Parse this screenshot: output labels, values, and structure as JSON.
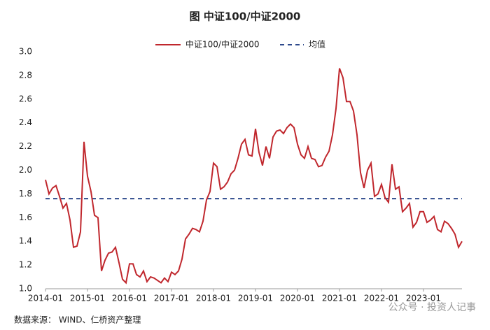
{
  "chart_data": {
    "type": "line",
    "title": "图  中证100/中证2000",
    "source": "数据来源：  WIND、仁桥资产整理",
    "watermark": "公众号 · 投资人记事",
    "categories": [
      "2014-01",
      null,
      null,
      null,
      null,
      null,
      null,
      null,
      null,
      null,
      null,
      null,
      "2015-01",
      null,
      null,
      null,
      null,
      null,
      null,
      null,
      null,
      null,
      null,
      null,
      "2016-01",
      null,
      null,
      null,
      null,
      null,
      null,
      null,
      null,
      null,
      null,
      null,
      "2017-01",
      null,
      null,
      null,
      null,
      null,
      null,
      null,
      null,
      null,
      null,
      null,
      "2018-01",
      null,
      null,
      null,
      null,
      null,
      null,
      null,
      null,
      null,
      null,
      null,
      "2019-01",
      null,
      null,
      null,
      null,
      null,
      null,
      null,
      null,
      null,
      null,
      null,
      "2020-01",
      null,
      null,
      null,
      null,
      null,
      null,
      null,
      null,
      null,
      null,
      null,
      "2021-01",
      null,
      null,
      null,
      null,
      null,
      null,
      null,
      null,
      null,
      null,
      null,
      "2022-01",
      null,
      null,
      null,
      null,
      null,
      null,
      null,
      null,
      null,
      null,
      null,
      "2023-01",
      null,
      null,
      null,
      null,
      null,
      null,
      null,
      null,
      null,
      null,
      null
    ],
    "series": [
      {
        "name": "中证100/中证2000",
        "color": "#c0272d",
        "values": [
          1.92,
          1.8,
          1.85,
          1.87,
          1.78,
          1.68,
          1.72,
          1.58,
          1.35,
          1.36,
          1.48,
          2.24,
          1.95,
          1.82,
          1.62,
          1.6,
          1.15,
          1.24,
          1.3,
          1.31,
          1.35,
          1.22,
          1.08,
          1.05,
          1.21,
          1.21,
          1.12,
          1.1,
          1.15,
          1.06,
          1.1,
          1.09,
          1.07,
          1.05,
          1.09,
          1.06,
          1.14,
          1.12,
          1.15,
          1.25,
          1.42,
          1.46,
          1.51,
          1.5,
          1.48,
          1.57,
          1.75,
          1.82,
          2.06,
          2.03,
          1.84,
          1.86,
          1.9,
          1.97,
          2.0,
          2.1,
          2.22,
          2.26,
          2.13,
          2.12,
          2.35,
          2.15,
          2.04,
          2.2,
          2.1,
          2.28,
          2.33,
          2.34,
          2.31,
          2.36,
          2.39,
          2.36,
          2.22,
          2.13,
          2.1,
          2.2,
          2.1,
          2.09,
          2.03,
          2.04,
          2.11,
          2.16,
          2.3,
          2.52,
          2.86,
          2.78,
          2.58,
          2.58,
          2.5,
          2.3,
          1.98,
          1.85,
          2.0,
          2.06,
          1.78,
          1.8,
          1.88,
          1.77,
          1.73,
          2.05,
          1.84,
          1.86,
          1.65,
          1.68,
          1.72,
          1.52,
          1.56,
          1.65,
          1.65,
          1.56,
          1.58,
          1.61,
          1.5,
          1.48,
          1.57,
          1.55,
          1.51,
          1.46,
          1.35,
          1.4
        ]
      }
    ],
    "reference_line": {
      "name": "均值",
      "value": 1.76,
      "color": "#2e4a8c"
    },
    "ylim": [
      1,
      3
    ],
    "yticks": [
      {
        "value": 1,
        "label": "1.0"
      },
      1.2,
      1.4,
      1.6,
      1.8,
      {
        "value": 2,
        "label": "2.0"
      },
      2.2,
      2.4,
      2.6,
      2.8,
      {
        "value": 3,
        "label": "3.0"
      }
    ],
    "grid": false,
    "legend": "top"
  }
}
